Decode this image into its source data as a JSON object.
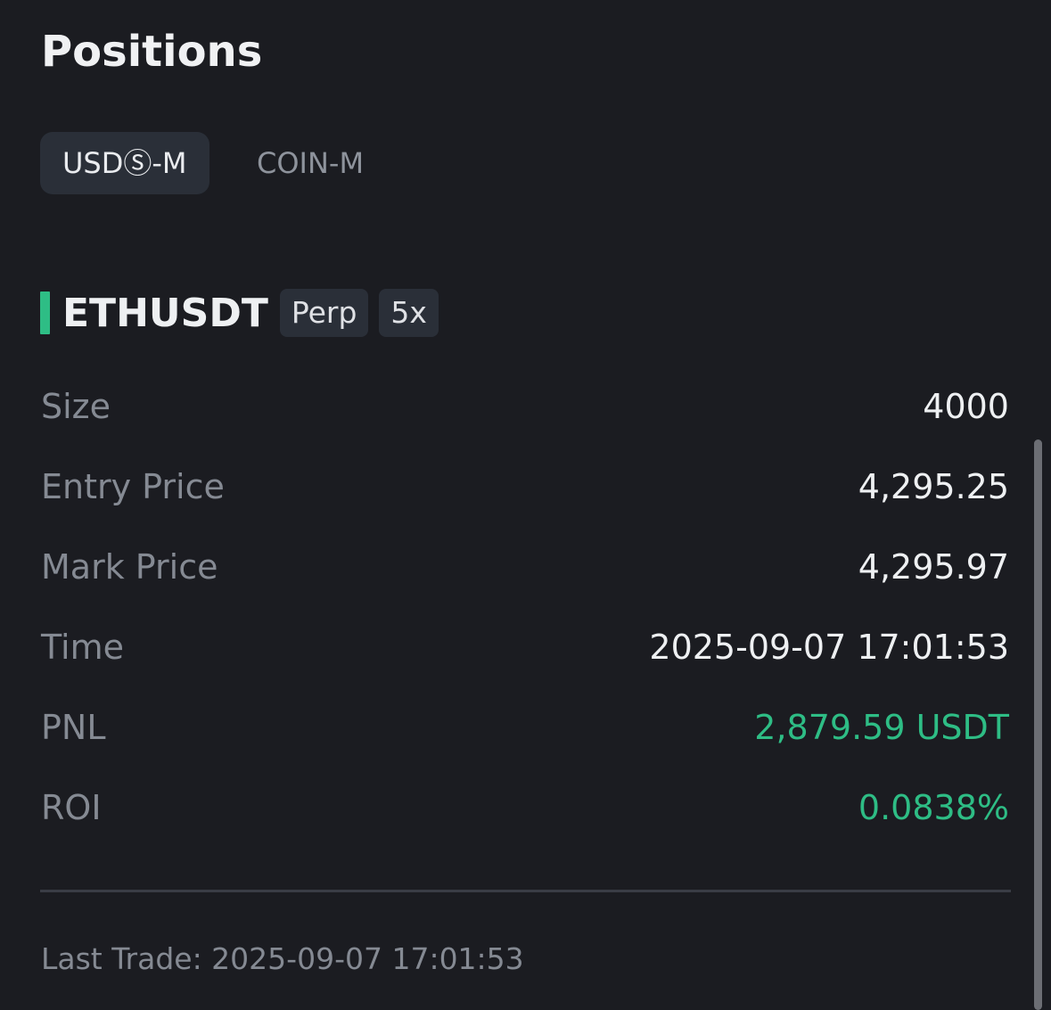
{
  "header": {
    "title": "Positions"
  },
  "tabs": [
    {
      "label": "USDⓈ-M",
      "active": true
    },
    {
      "label": "COIN-M",
      "active": false
    }
  ],
  "position": {
    "symbol": "ETHUSDT",
    "badges": [
      "Perp",
      "5x"
    ],
    "side_color": "#2ebd85",
    "rows": [
      {
        "label": "Size",
        "value": "4000"
      },
      {
        "label": "Entry Price",
        "value": "4,295.25"
      },
      {
        "label": "Mark Price",
        "value": "4,295.97"
      },
      {
        "label": "Time",
        "value": "2025-09-07 17:01:53"
      },
      {
        "label": "PNL",
        "value": "2,879.59 USDT"
      },
      {
        "label": "ROI",
        "value": "0.0838%"
      }
    ]
  },
  "footer": {
    "last_trade": "Last Trade: 2025-09-07 17:01:53"
  }
}
